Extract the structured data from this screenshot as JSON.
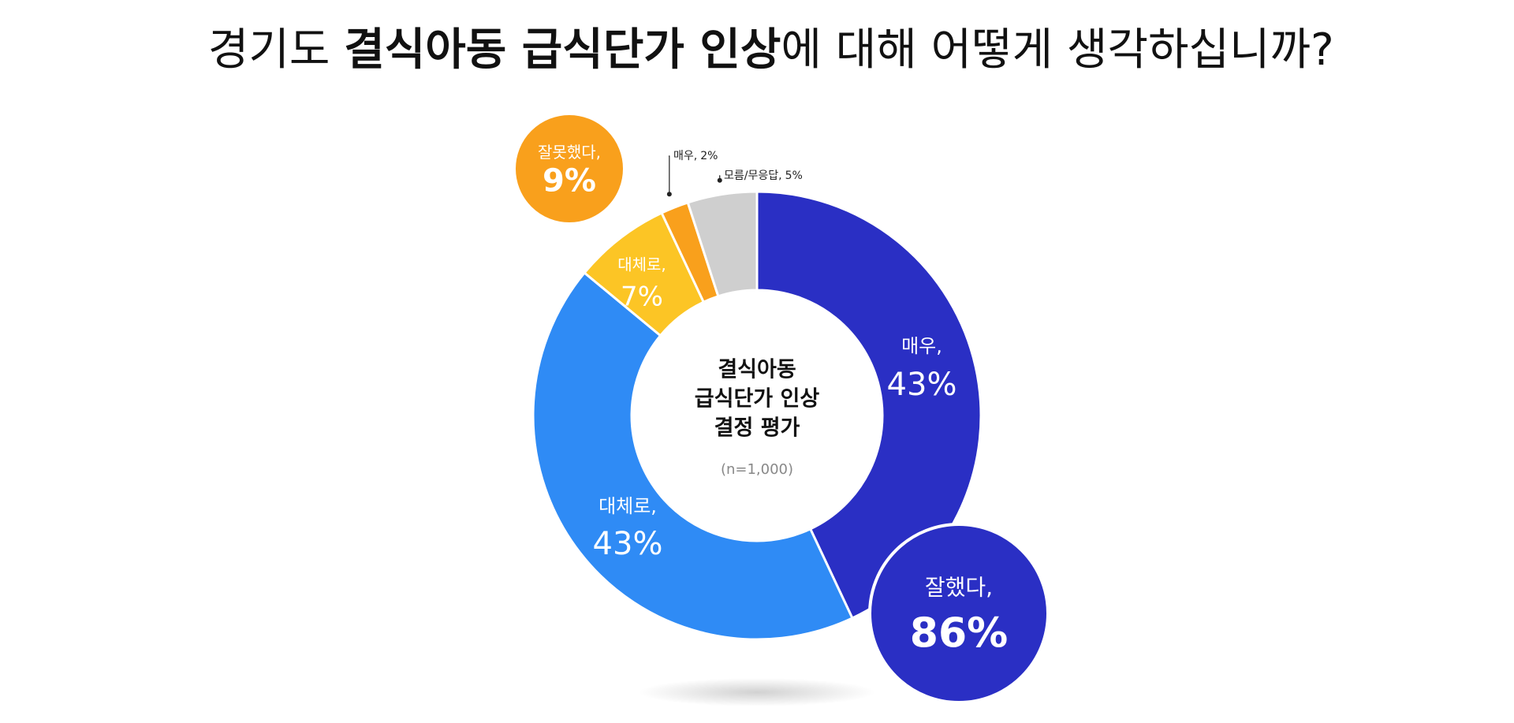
{
  "chart_data": {
    "type": "donut",
    "title_parts": [
      {
        "text": "경기도 ",
        "bold": false
      },
      {
        "text": "결식아동 급식단가 인상",
        "bold": true
      },
      {
        "text": "에 대해 어떻게 생각하십니까?",
        "bold": false
      }
    ],
    "categories": [
      "매우,",
      "대체로,",
      "대체로,",
      "매우,",
      "모름/무응답,"
    ],
    "values": [
      43,
      43,
      7,
      2,
      5
    ],
    "value_labels": [
      "43%",
      "43%",
      "7%",
      "2%",
      "5%"
    ],
    "colors": [
      "#2a2fc4",
      "#2f8bf5",
      "#fcc525",
      "#f9a01c",
      "#cfcfcf"
    ],
    "groups": [
      {
        "label": "잘했다,",
        "value": 86,
        "value_label": "86%",
        "color": "#2a2fc4"
      },
      {
        "label": "잘못했다,",
        "value": 9,
        "value_label": "9%",
        "color": "#f9a01c"
      }
    ],
    "center_label": [
      "결식아동",
      "급식단가 인상",
      "결정 평가"
    ],
    "sample": "(n=1,000)"
  }
}
